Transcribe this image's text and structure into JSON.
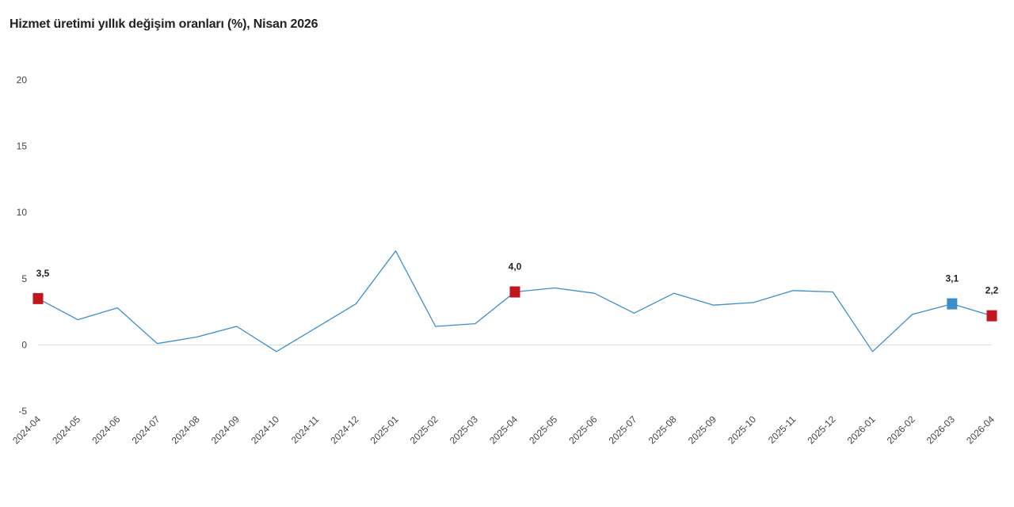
{
  "title": "Hizmet üretimi yıllık değişim oranları (%), Nisan 2026",
  "chart_data": {
    "type": "line",
    "title": "Hizmet üretimi yıllık değişim oranları (%), Nisan 2026",
    "xlabel": "",
    "ylabel": "",
    "ylim": [
      -5,
      20
    ],
    "yticks": [
      -5,
      0,
      5,
      10,
      15,
      20
    ],
    "grid": false,
    "legend": "none",
    "colors": {
      "line": "#3b8fc8",
      "marker_red": "#c0161f",
      "marker_blue": "#3b8fc8",
      "zero_line": "#dddddd"
    },
    "categories": [
      "2024-04",
      "2024-05",
      "2024-06",
      "2024-07",
      "2024-08",
      "2024-09",
      "2024-10",
      "2024-11",
      "2024-12",
      "2025-01",
      "2025-02",
      "2025-03",
      "2025-04",
      "2025-05",
      "2025-06",
      "2025-07",
      "2025-08",
      "2025-09",
      "2025-10",
      "2025-11",
      "2025-12",
      "2026-01",
      "2026-02",
      "2026-03",
      "2026-04"
    ],
    "series": [
      {
        "values": [
          3.5,
          1.9,
          2.8,
          0.1,
          0.6,
          1.4,
          -0.5,
          1.3,
          3.1,
          7.1,
          1.4,
          1.6,
          4.0,
          4.3,
          3.9,
          2.4,
          3.9,
          3.0,
          3.2,
          4.1,
          4.0,
          -0.5,
          2.3,
          3.1,
          2.2
        ]
      }
    ],
    "highlights": [
      {
        "index": 0,
        "label": "3,5",
        "color": "#c0161f"
      },
      {
        "index": 12,
        "label": "4,0",
        "color": "#c0161f"
      },
      {
        "index": 23,
        "label": "3,1",
        "color": "#3b8fc8"
      },
      {
        "index": 24,
        "label": "2,2",
        "color": "#c0161f"
      }
    ]
  }
}
